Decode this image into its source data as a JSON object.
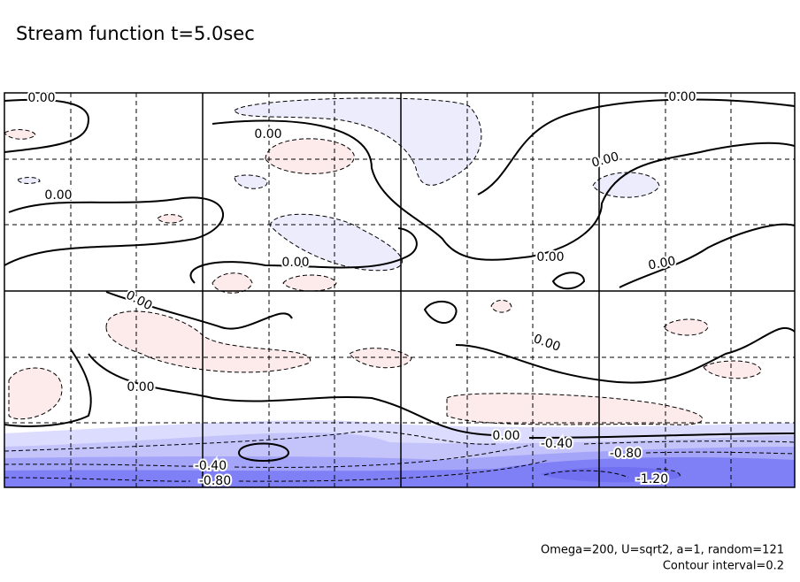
{
  "chart_data": {
    "type": "contour",
    "title": "Stream function t=5.0sec",
    "contour_labels": [
      {
        "value": 0,
        "label": "0.00"
      },
      {
        "value": 0,
        "label": "0.00"
      },
      {
        "value": 0,
        "label": "0.00"
      },
      {
        "value": 0,
        "label": "0.00"
      },
      {
        "value": 0,
        "label": "0.00"
      },
      {
        "value": 0,
        "label": "0.00"
      },
      {
        "value": 0,
        "label": "0.00"
      },
      {
        "value": 0,
        "label": "0.00"
      },
      {
        "value": 0,
        "label": "0.00"
      },
      {
        "value": 0,
        "label": "0.00"
      },
      {
        "value": 0,
        "label": "0.00"
      },
      {
        "value": 0,
        "label": "0.00"
      },
      {
        "value": -0.4,
        "label": "-0.40"
      },
      {
        "value": -0.4,
        "label": "-0.40"
      },
      {
        "value": -0.8,
        "label": "-0.80"
      },
      {
        "value": -0.8,
        "label": "-0.80"
      },
      {
        "value": -1.2,
        "label": "-1.20"
      }
    ],
    "annotations": [
      "Omega=200, U=sqrt2, a=1, random=121",
      "Contour interval=0.2"
    ]
  }
}
